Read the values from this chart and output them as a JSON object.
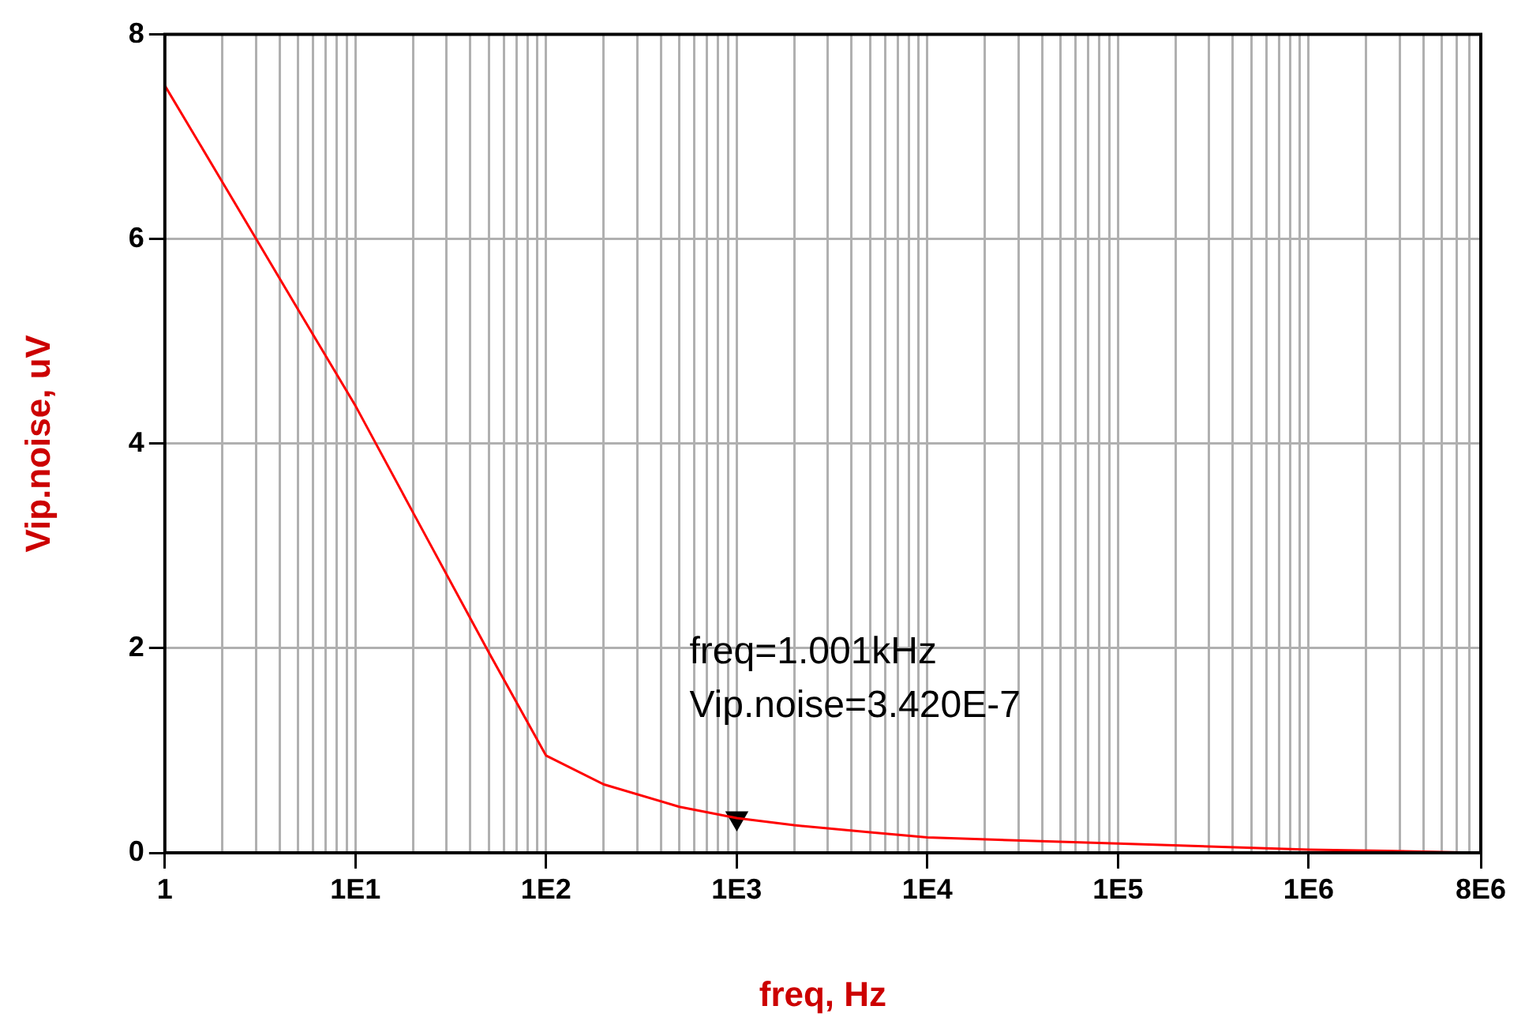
{
  "chart_data": {
    "type": "line",
    "xlabel": "freq, Hz",
    "ylabel": "Vip.noise, uV",
    "log": "x",
    "grid": true,
    "legend": false,
    "marker": "none",
    "line_style": "solid",
    "xlim": [
      1,
      8000000
    ],
    "xticks": [
      {
        "value": 1,
        "label": "1"
      },
      {
        "value": 2,
        "label": null
      },
      {
        "value": 3,
        "label": null
      },
      {
        "value": 4,
        "label": null
      },
      {
        "value": 5,
        "label": null
      },
      {
        "value": 6,
        "label": null
      },
      {
        "value": 7,
        "label": null
      },
      {
        "value": 8,
        "label": null
      },
      {
        "value": 9,
        "label": null
      },
      {
        "value": 10,
        "label": "1E1"
      },
      {
        "value": 20,
        "label": null
      },
      {
        "value": 30,
        "label": null
      },
      {
        "value": 40,
        "label": null
      },
      {
        "value": 50,
        "label": null
      },
      {
        "value": 60,
        "label": null
      },
      {
        "value": 70,
        "label": null
      },
      {
        "value": 80,
        "label": null
      },
      {
        "value": 90,
        "label": null
      },
      {
        "value": 100,
        "label": "1E2"
      },
      {
        "value": 200,
        "label": null
      },
      {
        "value": 300,
        "label": null
      },
      {
        "value": 400,
        "label": null
      },
      {
        "value": 500,
        "label": null
      },
      {
        "value": 600,
        "label": null
      },
      {
        "value": 700,
        "label": null
      },
      {
        "value": 800,
        "label": null
      },
      {
        "value": 900,
        "label": null
      },
      {
        "value": 1000,
        "label": "1E3"
      },
      {
        "value": 2000,
        "label": null
      },
      {
        "value": 3000,
        "label": null
      },
      {
        "value": 4000,
        "label": null
      },
      {
        "value": 5000,
        "label": null
      },
      {
        "value": 6000,
        "label": null
      },
      {
        "value": 7000,
        "label": null
      },
      {
        "value": 8000,
        "label": null
      },
      {
        "value": 9000,
        "label": null
      },
      {
        "value": 10000,
        "label": "1E4"
      },
      {
        "value": 20000,
        "label": null
      },
      {
        "value": 30000,
        "label": null
      },
      {
        "value": 40000,
        "label": null
      },
      {
        "value": 50000,
        "label": null
      },
      {
        "value": 60000,
        "label": null
      },
      {
        "value": 70000,
        "label": null
      },
      {
        "value": 80000,
        "label": null
      },
      {
        "value": 90000,
        "label": null
      },
      {
        "value": 100000,
        "label": "1E5"
      },
      {
        "value": 200000,
        "label": null
      },
      {
        "value": 300000,
        "label": null
      },
      {
        "value": 400000,
        "label": null
      },
      {
        "value": 500000,
        "label": null
      },
      {
        "value": 600000,
        "label": null
      },
      {
        "value": 700000,
        "label": null
      },
      {
        "value": 800000,
        "label": null
      },
      {
        "value": 900000,
        "label": null
      },
      {
        "value": 1000000,
        "label": "1E6"
      },
      {
        "value": 2000000,
        "label": null
      },
      {
        "value": 3000000,
        "label": null
      },
      {
        "value": 4000000,
        "label": null
      },
      {
        "value": 5000000,
        "label": null
      },
      {
        "value": 6000000,
        "label": null
      },
      {
        "value": 7000000,
        "label": null
      },
      {
        "value": 8000000,
        "label": "8E6"
      }
    ],
    "ylim": [
      0,
      8
    ],
    "yticks": [
      0,
      2,
      4,
      6,
      8
    ],
    "series": [
      {
        "color": "#ff0000",
        "x": [
          1,
          2,
          5,
          10,
          20,
          50,
          100,
          200,
          500,
          1000,
          2000,
          5000,
          10000,
          100000,
          1000000,
          2500000,
          8000000
        ],
        "values": [
          7.5,
          6.56,
          5.31,
          4.37,
          3.33,
          1.96,
          0.95,
          0.67,
          0.45,
          0.34,
          0.27,
          0.2,
          0.15,
          0.09,
          0.03,
          0.02,
          0
        ]
      },
      {
        "type": "scatter",
        "marker": "triangle",
        "color": "#000000",
        "x": [
          1001
        ],
        "values": [
          0.34
        ]
      }
    ],
    "annotations": [
      {
        "text": "freq=1.001kHz\nVip.noise=3.420E-7",
        "x": 1001,
        "y": 0.34
      }
    ]
  }
}
